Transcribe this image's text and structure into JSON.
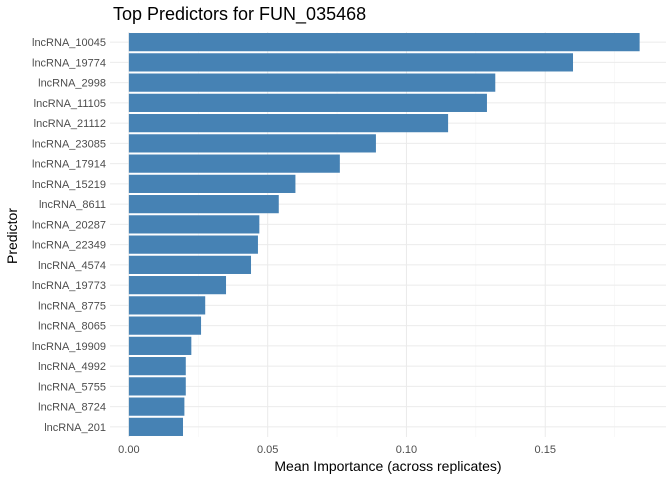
{
  "chart_data": {
    "type": "bar",
    "orientation": "horizontal",
    "title": "Top Predictors for FUN_035468",
    "xlabel": "Mean Importance (across replicates)",
    "ylabel": "Predictor",
    "xlim": [
      -0.0068,
      0.1935
    ],
    "xticks": [
      0.0,
      0.05,
      0.1,
      0.15
    ],
    "xtick_labels": [
      "0.00",
      "0.05",
      "0.10",
      "0.15"
    ],
    "grid": true,
    "bar_color": "#4682b4",
    "categories": [
      "lncRNA_10045",
      "lncRNA_19774",
      "lncRNA_2998",
      "lncRNA_11105",
      "lncRNA_21112",
      "lncRNA_23085",
      "lncRNA_17914",
      "lncRNA_15219",
      "lncRNA_8611",
      "lncRNA_20287",
      "lncRNA_22349",
      "lncRNA_4574",
      "lncRNA_19773",
      "lncRNA_8775",
      "lncRNA_8065",
      "lncRNA_19909",
      "lncRNA_4992",
      "lncRNA_5755",
      "lncRNA_8724",
      "lncRNA_201"
    ],
    "values": [
      0.184,
      0.16,
      0.132,
      0.129,
      0.115,
      0.089,
      0.076,
      0.06,
      0.054,
      0.047,
      0.0465,
      0.044,
      0.035,
      0.0275,
      0.026,
      0.0225,
      0.0205,
      0.0205,
      0.02,
      0.0195
    ]
  }
}
